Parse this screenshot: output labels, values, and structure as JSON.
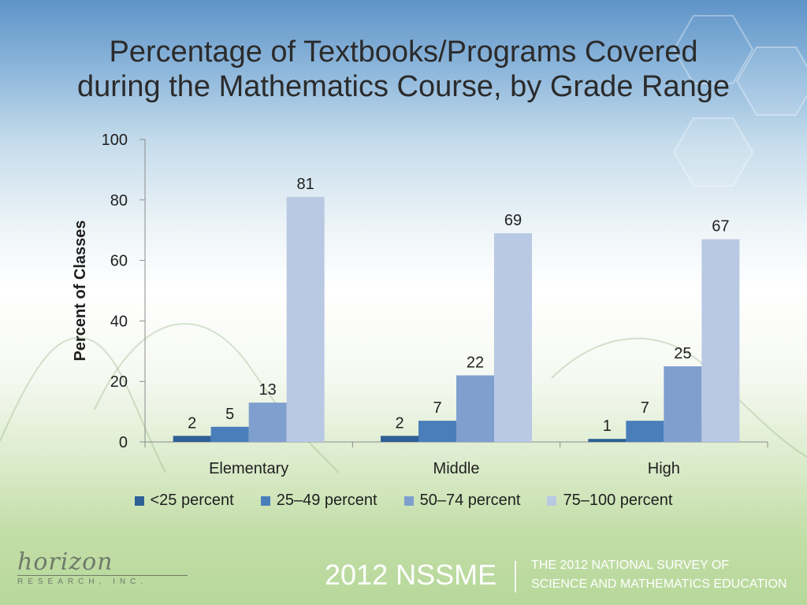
{
  "slide": {
    "title_line1": "Percentage of Textbooks/Programs Covered",
    "title_line2": "during the Mathematics Course, by Grade Range"
  },
  "chart_data": {
    "type": "bar",
    "ylabel": "Percent of Classes",
    "ylim": [
      0,
      100
    ],
    "yticks": [
      0,
      20,
      40,
      60,
      80,
      100
    ],
    "categories": [
      "Elementary",
      "Middle",
      "High"
    ],
    "series": [
      {
        "name": "<25 percent",
        "color": "#2e5f96",
        "values": [
          2,
          2,
          1
        ]
      },
      {
        "name": "25–49 percent",
        "color": "#4a7ebb",
        "values": [
          5,
          7,
          7
        ]
      },
      {
        "name": "50–74 percent",
        "color": "#7f9fcf",
        "values": [
          13,
          22,
          25
        ]
      },
      {
        "name": "75–100 percent",
        "color": "#b9c9e3",
        "values": [
          81,
          69,
          67
        ]
      }
    ],
    "legend_position": "bottom",
    "grid": false
  },
  "footer": {
    "logo_word": "horizon",
    "logo_sub": "RESEARCH, INC.",
    "survey_short": "2012 NSSME",
    "survey_line1": "THE 2012 NATIONAL SURVEY OF",
    "survey_line2": "SCIENCE AND MATHEMATICS EDUCATION"
  }
}
